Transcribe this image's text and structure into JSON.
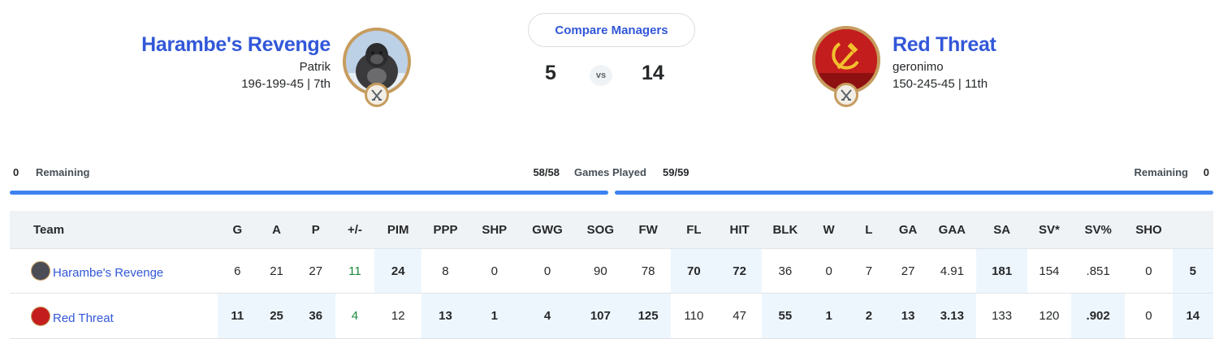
{
  "home": {
    "team_name": "Harambe's Revenge",
    "manager": "Patrik",
    "record": "196-199-45 | 7th",
    "score": "5"
  },
  "away": {
    "team_name": "Red Threat",
    "manager": "geronimo",
    "record": "150-245-45 | 11th",
    "score": "14"
  },
  "compare_label": "Compare Managers",
  "vs_label": "vs",
  "games": {
    "home_remaining_count": "0",
    "remaining_label": "Remaining",
    "home_played": "58/58",
    "games_played_label": "Games Played",
    "away_played": "59/59",
    "away_remaining_count": "0"
  },
  "colors": {
    "accent": "#3257d8",
    "bar": "#3e82f1",
    "win_cell": "#eef6fd",
    "positive": "#1a8a3a",
    "avatar_ring": "#c69c5e"
  },
  "table": {
    "team_header": "Team",
    "columns": [
      "G",
      "A",
      "P",
      "+/-",
      "PIM",
      "PPP",
      "SHP",
      "GWG",
      "SOG",
      "FW",
      "FL",
      "HIT",
      "BLK",
      "W",
      "L",
      "GA",
      "GAA",
      "SA",
      "SV*",
      "SV%",
      "SHO",
      ""
    ],
    "rows": [
      {
        "team": "Harambe's Revenge",
        "icon": "gorilla-avatar-icon",
        "values": [
          "6",
          "21",
          "27",
          "11",
          "24",
          "8",
          "0",
          "0",
          "90",
          "78",
          "70",
          "72",
          "36",
          "0",
          "7",
          "27",
          "4.91",
          "181",
          "154",
          ".851",
          "0",
          "5"
        ],
        "winning_columns": [
          4,
          10,
          11,
          17,
          21
        ],
        "positive_columns": [
          3
        ]
      },
      {
        "team": "Red Threat",
        "icon": "hammer-sickle-avatar-icon",
        "values": [
          "11",
          "25",
          "36",
          "4",
          "12",
          "13",
          "1",
          "4",
          "107",
          "125",
          "110",
          "47",
          "55",
          "1",
          "2",
          "13",
          "3.13",
          "133",
          "120",
          ".902",
          "0",
          "14"
        ],
        "winning_columns": [
          0,
          1,
          2,
          5,
          6,
          7,
          8,
          9,
          12,
          13,
          14,
          15,
          16,
          19,
          21
        ],
        "positive_columns": [
          3
        ]
      }
    ]
  }
}
